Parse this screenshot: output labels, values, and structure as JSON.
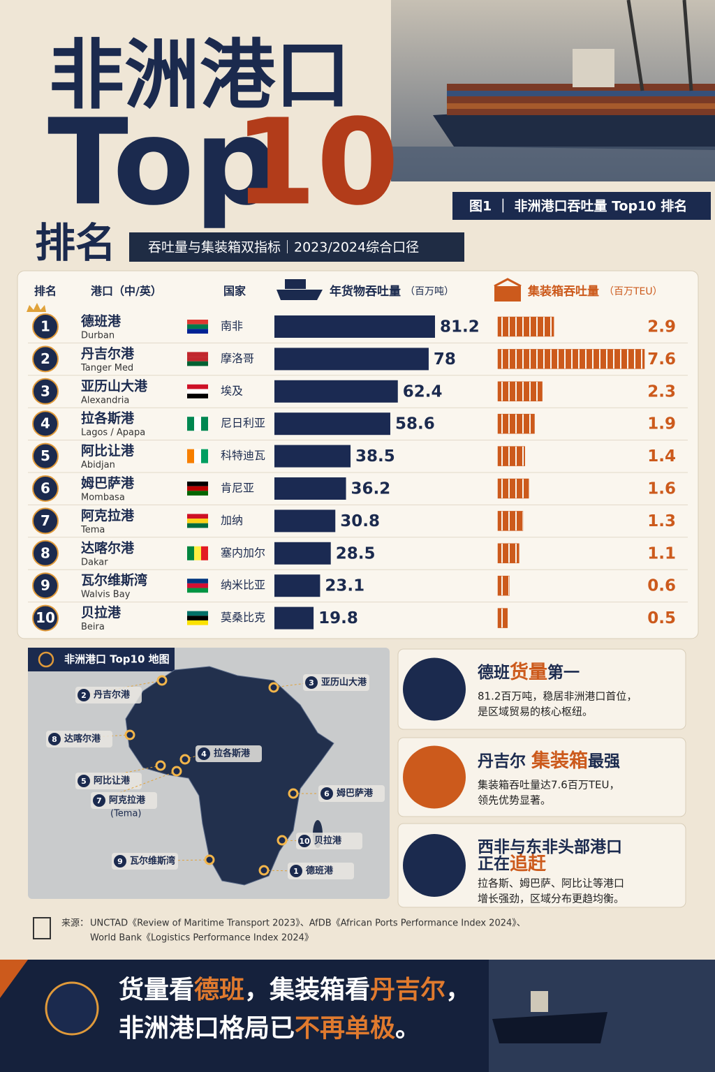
{
  "header": {
    "title_line1": "非洲港口",
    "title_top": "Top",
    "title_ten": "10",
    "title_line3": "排名",
    "subtitle": "吞吐量与集装箱双指标｜2023/2024综合口径",
    "figure_label": "图1 ｜ 非洲港口吞吐量 Top10 排名"
  },
  "columns": {
    "rank": "排名",
    "port": "港口（中/英）",
    "country": "国家"
  },
  "chart_data": {
    "type": "bar",
    "ranks": [
      1,
      2,
      3,
      4,
      5,
      6,
      7,
      8,
      9,
      10
    ],
    "categories": [
      "德班港",
      "丹吉尔港",
      "亚历山大港",
      "拉各斯港",
      "阿比让港",
      "姆巴萨港",
      "阿克拉港",
      "达喀尔港",
      "瓦尔维斯湾",
      "贝拉港"
    ],
    "categories_en": [
      "Durban",
      "Tanger Med",
      "Alexandria",
      "Lagos / Apapa",
      "Abidjan",
      "Mombasa",
      "Tema",
      "Dakar",
      "Walvis Bay",
      "Beira"
    ],
    "countries": [
      "南非",
      "摩洛哥",
      "埃及",
      "尼日利亚",
      "科特迪瓦",
      "肯尼亚",
      "加纳",
      "塞内加尔",
      "纳米比亚",
      "莫桑比克"
    ],
    "series": [
      {
        "name": "年货物吞吐量",
        "unit": "（百万吨）",
        "color": "#1b2a52",
        "values": [
          81.2,
          78,
          62.4,
          58.6,
          38.5,
          36.2,
          30.8,
          28.5,
          23.1,
          19.8
        ]
      },
      {
        "name": "集装箱吞吐量",
        "unit": "（百万TEU）",
        "color": "#cc5a1c",
        "values": [
          2.9,
          7.6,
          2.3,
          1.9,
          1.4,
          1.6,
          1.3,
          1.1,
          0.6,
          0.5
        ]
      }
    ]
  },
  "map": {
    "title": "非洲港口 Top10 地图",
    "pins": [
      {
        "rank": "3",
        "label": "亚历山大港"
      },
      {
        "rank": "2",
        "label": "丹吉尔港"
      },
      {
        "rank": "8",
        "label": "达喀尔港"
      },
      {
        "rank": "4",
        "label": "拉各斯港"
      },
      {
        "rank": "5",
        "label": "阿比让港"
      },
      {
        "rank": "7",
        "label": "阿克拉港",
        "note": "(Tema)"
      },
      {
        "rank": "6",
        "label": "姆巴萨港"
      },
      {
        "rank": "10",
        "label": "贝拉港"
      },
      {
        "rank": "9",
        "label": "瓦尔维斯湾"
      },
      {
        "rank": "1",
        "label": "德班港"
      }
    ]
  },
  "cards": [
    {
      "title": [
        "德班",
        "货量",
        "第一"
      ],
      "body": [
        "81.2百万吨，稳居非洲港口首位，",
        "是区域贸易的核心枢纽。"
      ]
    },
    {
      "title": [
        "丹吉尔 ",
        "集装箱",
        "最强"
      ],
      "body": [
        "集装箱吞吐量达7.6百万TEU，",
        "领先优势显著。"
      ]
    },
    {
      "title": [
        "西非与东非头部港口",
        "正在",
        "追赶"
      ],
      "body": [
        "拉各斯、姆巴萨、阿比让等港口",
        "增长强劲，区域分布更趋均衡。"
      ]
    }
  ],
  "source": {
    "label": "来源：",
    "line1": "UNCTAD《Review of Maritime Transport 2023》、AfDB《African Ports Performance Index 2024》、",
    "line2": "World Bank《Logistics Performance Index 2024》"
  },
  "footer": {
    "line1": [
      "货量看",
      "德班",
      "，集装箱看",
      "丹吉尔",
      "，"
    ],
    "line2": [
      "非洲港口格局已",
      "不再单极",
      "。"
    ]
  }
}
